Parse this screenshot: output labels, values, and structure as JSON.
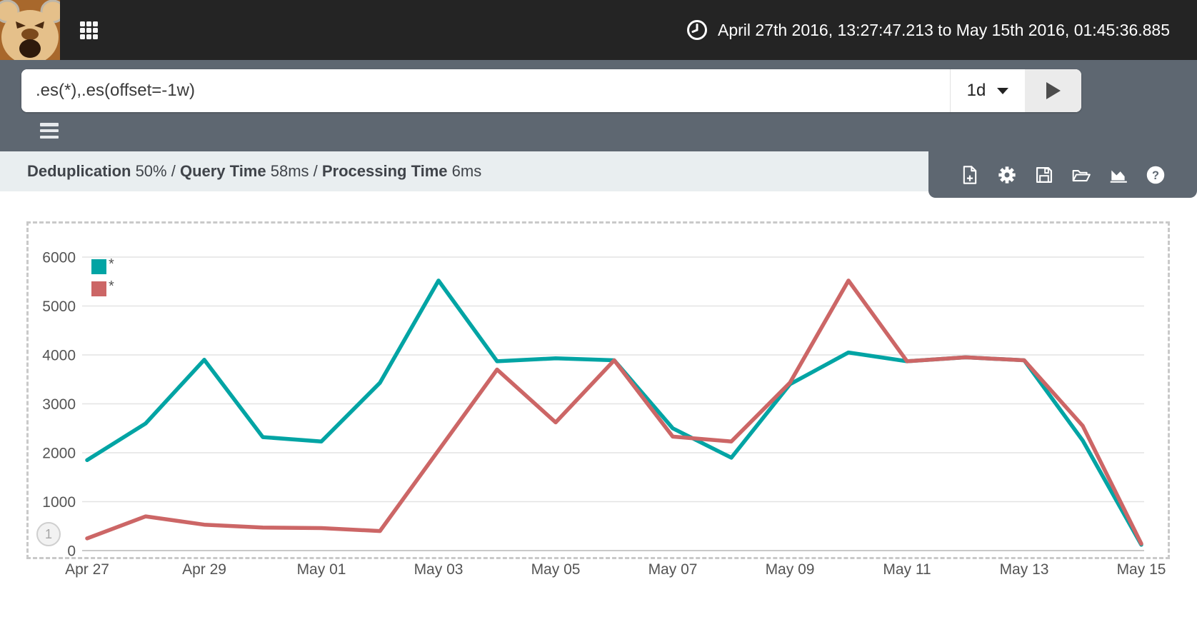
{
  "topbar": {
    "time_range": "April 27th 2016, 13:27:47.213 to May 15th 2016, 01:45:36.885"
  },
  "toolbar": {
    "query": ".es(*),.es(offset=-1w)",
    "interval": "1d"
  },
  "stats": {
    "separator": "/",
    "segments": [
      {
        "label": "Deduplication",
        "value": "50%"
      },
      {
        "label": "Query Time",
        "value": "58ms"
      },
      {
        "label": "Processing Time",
        "value": "6ms"
      }
    ]
  },
  "actionbar": {
    "icons": [
      "new-sheet",
      "options",
      "save-sheet",
      "open-sheet",
      "chart-mode",
      "help"
    ]
  },
  "pagination": {
    "label": "1"
  },
  "chart_data": {
    "type": "line",
    "title": "",
    "xlabel": "",
    "ylabel": "",
    "ylim": [
      0,
      6000
    ],
    "y_ticks": [
      0,
      1000,
      2000,
      3000,
      4000,
      5000,
      6000
    ],
    "grid": true,
    "legend_position": "top-left",
    "x_tick_labels": [
      "Apr 27",
      "Apr 29",
      "May 01",
      "May 03",
      "May 05",
      "May 07",
      "May 09",
      "May 11",
      "May 13",
      "May 15"
    ],
    "x_days": [
      "Apr 27",
      "Apr 28",
      "Apr 29",
      "Apr 30",
      "May 01",
      "May 02",
      "May 03",
      "May 04",
      "May 05",
      "May 06",
      "May 07",
      "May 08",
      "May 09",
      "May 10",
      "May 11",
      "May 12",
      "May 13",
      "May 14",
      "May 15"
    ],
    "series": [
      {
        "name": "*",
        "color": "#01a4a4",
        "values": [
          1850,
          2600,
          3900,
          2320,
          2230,
          3430,
          5520,
          3870,
          3930,
          3890,
          2500,
          1900,
          3400,
          4050,
          3870,
          3950,
          3890,
          2250,
          120
        ]
      },
      {
        "name": "*",
        "color": "#cc6666",
        "values": [
          250,
          700,
          530,
          470,
          460,
          400,
          2050,
          3700,
          2620,
          3890,
          2330,
          2230,
          3430,
          5520,
          3870,
          3950,
          3890,
          2550,
          140
        ]
      }
    ]
  }
}
